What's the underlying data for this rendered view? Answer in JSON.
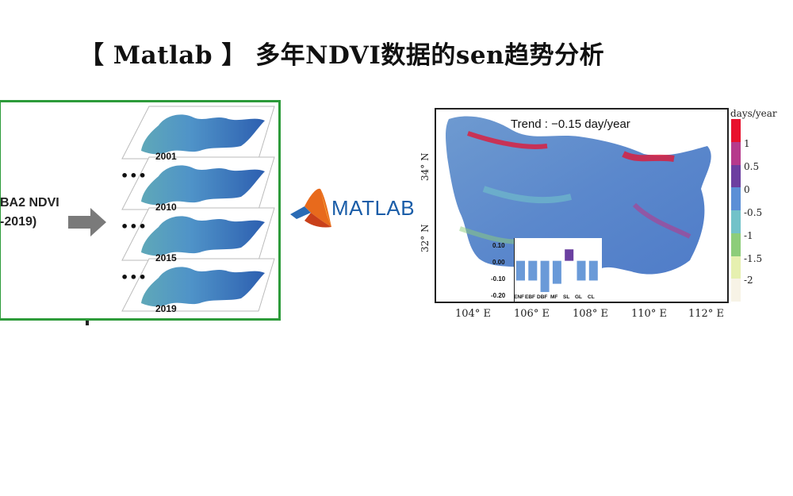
{
  "title": "【 Matlab 】 多年NDVI数据的sen趋势分析",
  "left_panel": {
    "label_line1": "BA2 NDVI",
    "label_line2": "-2019)",
    "years": [
      "2001",
      "2010",
      "2015",
      "2019"
    ],
    "ellipsis": "•••"
  },
  "matlab_logo": {
    "text": "MATLAB",
    "icon": "matlab-membrane-icon"
  },
  "map": {
    "trend_text": "Trend : −0.15 day/year",
    "lat_labels": [
      "34° N",
      "32° N"
    ],
    "lon_labels": [
      "104° E",
      "106° E",
      "108° E",
      "110° E",
      "112° E"
    ],
    "legend": {
      "unit": "days/year",
      "ticks": [
        "1",
        "0.5",
        "0",
        "-0.5",
        "-1",
        "-1.5",
        "-2"
      ],
      "colors": [
        "#e8112d",
        "#b63a8c",
        "#6c3fa0",
        "#5b8fd6",
        "#72c2c9",
        "#8dcd7a",
        "#e6f0b0",
        "#f7f3e6"
      ]
    }
  },
  "chart_data": {
    "type": "bar",
    "categories": [
      "ENF",
      "EBF",
      "DBF",
      "MF",
      "SL",
      "GL",
      "CL"
    ],
    "values": [
      -0.12,
      -0.12,
      -0.19,
      -0.14,
      0.07,
      -0.12,
      -0.12
    ],
    "y_tick_labels": [
      "0.10",
      "0.00",
      "-0.10",
      "-0.20"
    ],
    "ylim": [
      -0.2,
      0.1
    ],
    "colors": {
      "negative": "#6a9ad8",
      "positive": "#6a3fa0"
    }
  }
}
